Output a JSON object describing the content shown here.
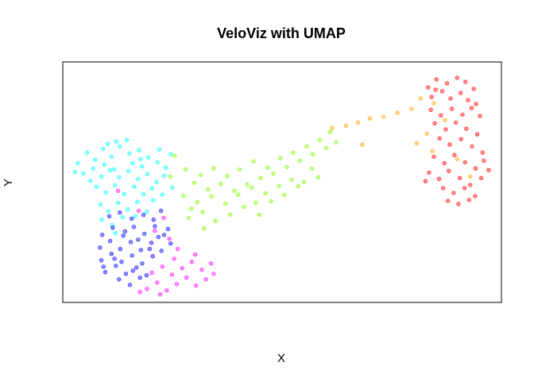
{
  "chart_data": {
    "type": "scatter",
    "title": "VeloViz with UMAP",
    "xlabel": "X",
    "ylabel": "Y",
    "xlim": [
      0,
      100
    ],
    "ylim": [
      0,
      100
    ],
    "axes_ticks": false,
    "grid": false,
    "legend": "none",
    "marker": "filled circle, semi-transparent",
    "clusters": [
      {
        "color": "#ff0000",
        "points": [
          [
            83.3,
            89.4
          ],
          [
            85.2,
            92.7
          ],
          [
            87.6,
            91.1
          ],
          [
            89.9,
            93.4
          ],
          [
            91.8,
            91.7
          ],
          [
            84.1,
            85.4
          ],
          [
            86.5,
            87.8
          ],
          [
            88.4,
            84.8
          ],
          [
            90.7,
            87.1
          ],
          [
            92.4,
            84.1
          ],
          [
            94.2,
            82.5
          ],
          [
            83.9,
            80.1
          ],
          [
            86.2,
            77.8
          ],
          [
            88.7,
            80.5
          ],
          [
            91.1,
            78.1
          ],
          [
            93.2,
            80.8
          ],
          [
            95.1,
            77.5
          ],
          [
            84.8,
            74.5
          ],
          [
            87.3,
            71.9
          ],
          [
            89.6,
            74.8
          ],
          [
            92.0,
            72.2
          ],
          [
            94.5,
            69.9
          ],
          [
            85.9,
            68.2
          ],
          [
            88.2,
            65.6
          ],
          [
            90.8,
            67.9
          ],
          [
            93.3,
            64.9
          ],
          [
            95.7,
            62.3
          ],
          [
            84.6,
            60.6
          ],
          [
            87.0,
            57.9
          ],
          [
            89.3,
            61.3
          ],
          [
            91.7,
            58.3
          ],
          [
            94.1,
            55.7
          ],
          [
            96.0,
            58.9
          ],
          [
            83.5,
            54.0
          ],
          [
            85.8,
            51.4
          ],
          [
            88.0,
            54.7
          ],
          [
            90.5,
            51.7
          ],
          [
            92.9,
            48.8
          ],
          [
            95.4,
            51.7
          ],
          [
            86.7,
            47.5
          ],
          [
            89.1,
            45.5
          ],
          [
            91.6,
            47.5
          ],
          [
            94.0,
            44.2
          ],
          [
            87.8,
            42.2
          ],
          [
            90.2,
            40.9
          ],
          [
            92.6,
            42.6
          ],
          [
            82.7,
            50.4
          ],
          [
            97.1,
            55.0
          ],
          [
            85.0,
            88.4
          ],
          [
            93.7,
            88.8
          ]
        ]
      },
      {
        "color": "#ffa500",
        "points": [
          [
            61.4,
            72.5
          ],
          [
            64.6,
            73.5
          ],
          [
            67.3,
            74.8
          ],
          [
            70.0,
            76.5
          ],
          [
            73.1,
            77.2
          ],
          [
            76.3,
            78.8
          ],
          [
            79.5,
            80.5
          ],
          [
            81.6,
            84.8
          ],
          [
            84.6,
            82.8
          ],
          [
            87.1,
            75.8
          ],
          [
            80.7,
            66.2
          ],
          [
            84.3,
            62.9
          ],
          [
            89.9,
            59.6
          ],
          [
            92.9,
            52.3
          ],
          [
            83.0,
            70.2
          ],
          [
            68.3,
            65.6
          ]
        ]
      },
      {
        "color": "#7cfc00",
        "points": [
          [
            28.0,
            55.3
          ],
          [
            31.5,
            53.0
          ],
          [
            34.4,
            55.7
          ],
          [
            37.5,
            52.6
          ],
          [
            40.3,
            55.3
          ],
          [
            43.5,
            58.6
          ],
          [
            46.7,
            56.0
          ],
          [
            49.6,
            59.9
          ],
          [
            52.5,
            62.3
          ],
          [
            55.6,
            64.9
          ],
          [
            58.6,
            67.5
          ],
          [
            61.0,
            70.9
          ],
          [
            62.3,
            66.5
          ],
          [
            30.0,
            49.7
          ],
          [
            33.1,
            47.0
          ],
          [
            36.0,
            49.3
          ],
          [
            39.1,
            46.4
          ],
          [
            42.0,
            49.0
          ],
          [
            45.1,
            51.7
          ],
          [
            48.0,
            53.6
          ],
          [
            51.1,
            56.3
          ],
          [
            54.0,
            58.9
          ],
          [
            57.0,
            61.6
          ],
          [
            60.0,
            64.2
          ],
          [
            27.5,
            44.4
          ],
          [
            30.7,
            41.7
          ],
          [
            33.9,
            44.1
          ],
          [
            37.1,
            41.1
          ],
          [
            40.0,
            44.8
          ],
          [
            43.1,
            47.8
          ],
          [
            46.2,
            45.4
          ],
          [
            49.3,
            48.4
          ],
          [
            52.2,
            51.0
          ],
          [
            28.7,
            35.1
          ],
          [
            31.9,
            37.7
          ],
          [
            34.8,
            33.8
          ],
          [
            38.1,
            36.5
          ],
          [
            41.3,
            39.7
          ],
          [
            44.8,
            36.4
          ],
          [
            47.5,
            42.1
          ],
          [
            50.5,
            44.7
          ],
          [
            53.7,
            48.3
          ],
          [
            56.8,
            55.6
          ],
          [
            58.2,
            52.0
          ],
          [
            25.5,
            61.0
          ],
          [
            29.3,
            38.9
          ],
          [
            24.5,
            52.3
          ],
          [
            32.2,
            30.8
          ],
          [
            44.0,
            41.4
          ],
          [
            55.0,
            50.0
          ]
        ]
      },
      {
        "color": "#00ffff",
        "points": [
          [
            3.4,
            57.9
          ],
          [
            5.5,
            62.3
          ],
          [
            7.4,
            59.3
          ],
          [
            9.2,
            63.9
          ],
          [
            11.1,
            60.6
          ],
          [
            13.0,
            64.9
          ],
          [
            15.2,
            61.9
          ],
          [
            17.4,
            63.3
          ],
          [
            19.5,
            60.3
          ],
          [
            21.6,
            58.3
          ],
          [
            23.5,
            56.0
          ],
          [
            4.7,
            53.6
          ],
          [
            6.9,
            55.6
          ],
          [
            8.8,
            52.3
          ],
          [
            10.8,
            55.0
          ],
          [
            12.9,
            52.0
          ],
          [
            15.0,
            54.6
          ],
          [
            17.2,
            51.3
          ],
          [
            19.3,
            53.3
          ],
          [
            21.4,
            50.0
          ],
          [
            23.1,
            52.6
          ],
          [
            25.0,
            47.7
          ],
          [
            7.7,
            48.1
          ],
          [
            9.8,
            45.7
          ],
          [
            11.9,
            48.7
          ],
          [
            14.0,
            45.1
          ],
          [
            16.3,
            48.1
          ],
          [
            18.4,
            45.0
          ],
          [
            20.6,
            42.5
          ],
          [
            22.7,
            44.8
          ],
          [
            8.6,
            40.7
          ],
          [
            10.4,
            38.0
          ],
          [
            12.6,
            41.4
          ],
          [
            14.8,
            38.7
          ],
          [
            17.0,
            41.7
          ],
          [
            19.2,
            37.7
          ],
          [
            8.9,
            34.4
          ],
          [
            11.3,
            32.1
          ],
          [
            13.7,
            35.4
          ],
          [
            10.2,
            65.9
          ],
          [
            12.2,
            66.9
          ],
          [
            14.6,
            67.5
          ],
          [
            6.3,
            50.6
          ],
          [
            24.6,
            61.6
          ],
          [
            22.0,
            63.6
          ],
          [
            15.9,
            57.9
          ],
          [
            18.1,
            56.6
          ],
          [
            20.3,
            47.4
          ],
          [
            16.5,
            35.8
          ],
          [
            12.0,
            28.8
          ],
          [
            9.5,
            57.3
          ],
          [
            2.8,
            54.3
          ],
          [
            11.7,
            55.3
          ],
          [
            17.7,
            59.6
          ]
        ]
      },
      {
        "color": "#0000ff",
        "points": [
          [
            9.0,
            28.1
          ],
          [
            11.4,
            31.1
          ],
          [
            13.8,
            27.8
          ],
          [
            16.2,
            31.4
          ],
          [
            18.6,
            28.5
          ],
          [
            21.0,
            31.7
          ],
          [
            23.1,
            28.1
          ],
          [
            8.5,
            22.8
          ],
          [
            10.8,
            25.5
          ],
          [
            13.1,
            22.2
          ],
          [
            15.5,
            25.1
          ],
          [
            17.8,
            21.8
          ],
          [
            20.2,
            24.8
          ],
          [
            22.5,
            21.5
          ],
          [
            24.6,
            24.5
          ],
          [
            8.8,
            17.5
          ],
          [
            11.1,
            20.2
          ],
          [
            13.4,
            16.9
          ],
          [
            15.8,
            19.5
          ],
          [
            18.1,
            16.2
          ],
          [
            20.5,
            19.2
          ],
          [
            9.7,
            12.6
          ],
          [
            12.1,
            15.2
          ],
          [
            14.4,
            11.9
          ],
          [
            16.8,
            14.5
          ],
          [
            19.1,
            11.3
          ],
          [
            12.8,
            9.6
          ],
          [
            15.3,
            7.3
          ],
          [
            17.6,
            10.3
          ],
          [
            10.6,
            35.8
          ],
          [
            13.0,
            37.4
          ],
          [
            15.7,
            34.8
          ],
          [
            18.4,
            36.4
          ],
          [
            20.7,
            34.4
          ],
          [
            22.4,
            38.1
          ],
          [
            24.0,
            30.5
          ],
          [
            19.8,
            22.2
          ],
          [
            14.2,
            29.5
          ],
          [
            11.8,
            18.2
          ],
          [
            16.0,
            13.2
          ],
          [
            21.8,
            27.2
          ],
          [
            9.3,
            14.9
          ],
          [
            17.2,
            26.1
          ]
        ]
      },
      {
        "color": "#ff00ff",
        "points": [
          [
            19.2,
            5.6
          ],
          [
            21.5,
            8.3
          ],
          [
            23.7,
            5.0
          ],
          [
            26.0,
            7.6
          ],
          [
            28.2,
            10.3
          ],
          [
            30.4,
            7.0
          ],
          [
            32.6,
            9.6
          ],
          [
            20.3,
            12.3
          ],
          [
            22.7,
            14.9
          ],
          [
            24.9,
            11.6
          ],
          [
            27.2,
            14.2
          ],
          [
            29.4,
            16.9
          ],
          [
            31.7,
            13.6
          ],
          [
            33.8,
            16.2
          ],
          [
            22.2,
            3.3
          ],
          [
            17.6,
            4.3
          ],
          [
            25.4,
            18.2
          ],
          [
            30.2,
            19.9
          ],
          [
            34.4,
            11.9
          ],
          [
            21.0,
            29.8
          ],
          [
            23.0,
            35.1
          ],
          [
            17.3,
            38.1
          ],
          [
            24.3,
            26.5
          ],
          [
            26.2,
            22.2
          ],
          [
            12.6,
            46.4
          ]
        ]
      }
    ]
  }
}
